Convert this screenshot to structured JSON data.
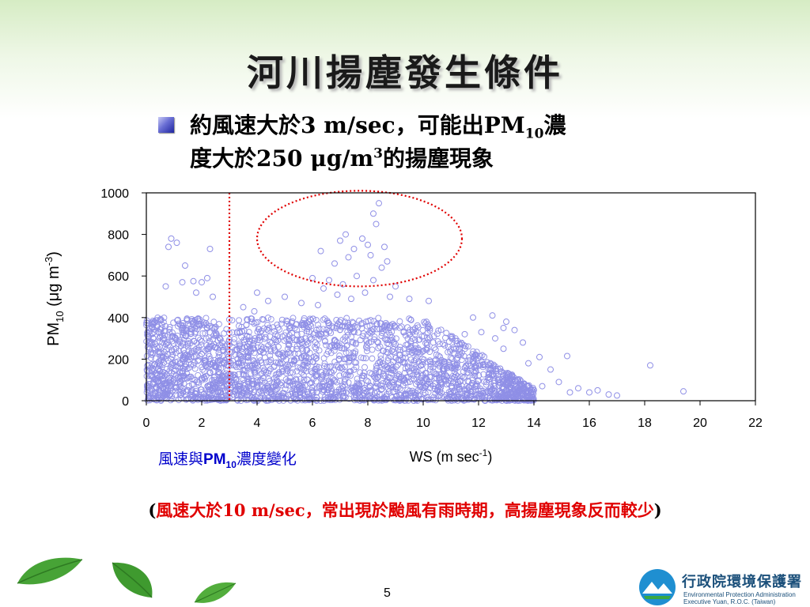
{
  "title": "河川揚塵發生條件",
  "bullet": {
    "line1_a": "約風速大於3 m/sec，可能出PM",
    "line1_sub": "10",
    "line1_b": "濃",
    "line2_a": "度大於250 μg/m",
    "line2_sup": "3",
    "line2_b": "的揚塵現象"
  },
  "chart_caption": {
    "a": "風速與",
    "chem": "PM",
    "sub": "10",
    "b": "濃度變化"
  },
  "note": {
    "open": "(",
    "text": "風速大於10 m/sec，常出現於颱風有雨時期，高揚塵現象反而較少",
    "close": ")"
  },
  "page_number": "5",
  "logo": {
    "name": "行政院環境保護署",
    "en_line1": "Environmental Protection Administration",
    "en_line2": "Executive Yuan, R.O.C. (Taiwan)"
  },
  "colors": {
    "marker": "#8f8fe6",
    "threshold_line": "#e00000",
    "highlight_ellipse": "#e00000",
    "caption": "#0000cc",
    "note": "#e00000",
    "leaf": "#3f9a2f"
  },
  "chart_data": {
    "type": "scatter",
    "title": "",
    "xlabel": "WS (m sec-1)",
    "xlabel_parts": {
      "main": "WS (m sec",
      "sup": "-1",
      "end": ")"
    },
    "ylabel_parts": {
      "main": "PM",
      "sub": "10",
      "mid": " (μg m",
      "sup": "-3",
      "end": ")"
    },
    "xlim": [
      0,
      22
    ],
    "ylim": [
      0,
      1000
    ],
    "xticks": [
      "0",
      "2",
      "4",
      "6",
      "8",
      "10",
      "12",
      "14",
      "16",
      "18",
      "20",
      "22"
    ],
    "yticks": [
      "0",
      "200",
      "400",
      "600",
      "800",
      "1000"
    ],
    "grid": false,
    "marker": "open-circle",
    "threshold_x": 3,
    "highlight_ellipse": {
      "center": [
        7.7,
        780
      ],
      "radii": [
        3.7,
        230
      ]
    },
    "dense_region": {
      "x_range": [
        0,
        14
      ],
      "y_range": [
        0,
        400
      ]
    },
    "points": [
      [
        8.4,
        950
      ],
      [
        8.2,
        900
      ],
      [
        8.3,
        850
      ],
      [
        7.2,
        800
      ],
      [
        7.0,
        770
      ],
      [
        7.8,
        780
      ],
      [
        8.0,
        750
      ],
      [
        6.3,
        720
      ],
      [
        8.6,
        740
      ],
      [
        7.5,
        730
      ],
      [
        8.1,
        700
      ],
      [
        8.7,
        670
      ],
      [
        7.3,
        690
      ],
      [
        6.8,
        660
      ],
      [
        8.5,
        640
      ],
      [
        6.0,
        590
      ],
      [
        6.6,
        580
      ],
      [
        7.1,
        560
      ],
      [
        7.6,
        600
      ],
      [
        8.2,
        580
      ],
      [
        9.0,
        550
      ],
      [
        6.4,
        540
      ],
      [
        7.9,
        520
      ],
      [
        8.8,
        500
      ],
      [
        9.5,
        490
      ],
      [
        10.2,
        480
      ],
      [
        6.9,
        510
      ],
      [
        7.4,
        490
      ],
      [
        5.6,
        470
      ],
      [
        6.2,
        460
      ],
      [
        0.9,
        780
      ],
      [
        1.1,
        760
      ],
      [
        0.8,
        740
      ],
      [
        1.4,
        650
      ],
      [
        2.3,
        730
      ],
      [
        2.2,
        590
      ],
      [
        1.7,
        575
      ],
      [
        1.3,
        570
      ],
      [
        2.0,
        570
      ],
      [
        0.7,
        550
      ],
      [
        1.8,
        520
      ],
      [
        2.4,
        500
      ],
      [
        4.0,
        520
      ],
      [
        4.4,
        480
      ],
      [
        5.0,
        500
      ],
      [
        3.5,
        450
      ],
      [
        3.9,
        430
      ],
      [
        12.5,
        410
      ],
      [
        13.0,
        380
      ],
      [
        11.8,
        400
      ],
      [
        12.9,
        350
      ],
      [
        13.3,
        340
      ],
      [
        12.1,
        330
      ],
      [
        11.5,
        320
      ],
      [
        12.6,
        300
      ],
      [
        13.6,
        280
      ],
      [
        12.9,
        250
      ],
      [
        14.2,
        210
      ],
      [
        15.2,
        215
      ],
      [
        13.8,
        180
      ],
      [
        14.6,
        150
      ],
      [
        13.2,
        120
      ],
      [
        14.9,
        90
      ],
      [
        14.3,
        70
      ],
      [
        15.6,
        60
      ],
      [
        16.3,
        50
      ],
      [
        16.0,
        40
      ],
      [
        16.7,
        30
      ],
      [
        15.3,
        40
      ],
      [
        18.2,
        170
      ],
      [
        19.4,
        45
      ],
      [
        17.0,
        25
      ]
    ]
  }
}
